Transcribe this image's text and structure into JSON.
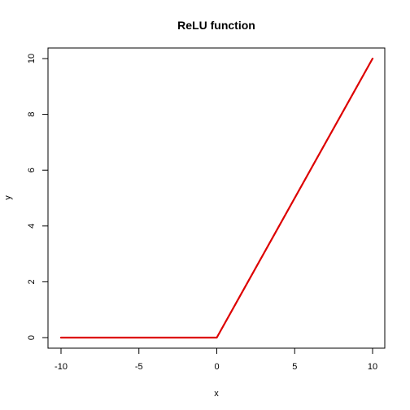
{
  "chart_data": {
    "type": "line",
    "title": "ReLU function",
    "xlabel": "x",
    "ylabel": "y",
    "xlim": [
      -10,
      10
    ],
    "ylim": [
      0,
      10
    ],
    "xticks": [
      -10,
      -5,
      0,
      5,
      10
    ],
    "yticks": [
      0,
      2,
      4,
      6,
      8,
      10
    ],
    "grid": false,
    "legend": "none",
    "series": [
      {
        "color": "#dd0000",
        "x": [
          -10,
          0,
          10
        ],
        "y": [
          0,
          0,
          10
        ]
      }
    ]
  }
}
